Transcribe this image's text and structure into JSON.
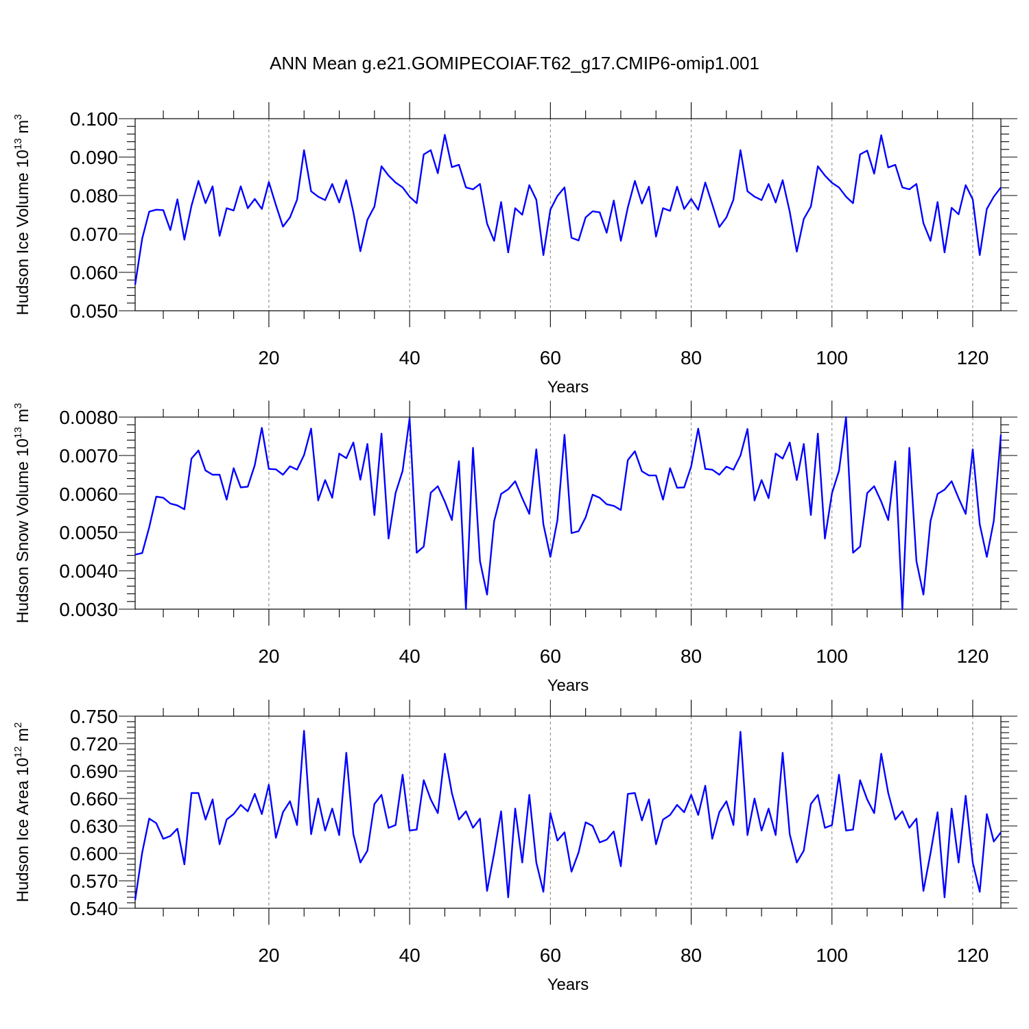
{
  "figure": {
    "title": "ANN Mean g.e21.GOMIPECOIAF.T62_g17.CMIP6-omip1.001"
  },
  "colors": {
    "series": "#0000ff",
    "axis": "#000000",
    "grid": "#7f7f7f"
  },
  "chart_data": [
    {
      "type": "line",
      "ylabel": "Hudson Ice Volume 10",
      "ylabel_exp": "13",
      "ylabel_unit": " m",
      "ylabel_unit_exp": "3",
      "xlabel": "Years",
      "xlim": [
        1,
        124
      ],
      "ylim": [
        0.05,
        0.1
      ],
      "yticks": [
        0.05,
        0.06,
        0.07,
        0.08,
        0.09,
        0.1
      ],
      "ytick_labels": [
        "0.050",
        "0.060",
        "0.070",
        "0.080",
        "0.090",
        "0.100"
      ],
      "xticks": [
        20,
        40,
        60,
        80,
        100,
        120
      ],
      "xtick_labels": [
        "20",
        "40",
        "60",
        "80",
        "100",
        "120"
      ],
      "grid": "vertical dashed at major x ticks",
      "x": [
        1,
        2,
        3,
        4,
        5,
        6,
        7,
        8,
        9,
        10,
        11,
        12,
        13,
        14,
        15,
        16,
        17,
        18,
        19,
        20,
        21,
        22,
        23,
        24,
        25,
        26,
        27,
        28,
        29,
        30,
        31,
        32,
        33,
        34,
        35,
        36,
        37,
        38,
        39,
        40,
        41,
        42,
        43,
        44,
        45,
        46,
        47,
        48,
        49,
        50,
        51,
        52,
        53,
        54,
        55,
        56,
        57,
        58,
        59,
        60,
        61,
        62,
        63,
        64,
        65,
        66,
        67,
        68,
        69,
        70,
        71,
        72,
        73,
        74,
        75,
        76,
        77,
        78,
        79,
        80,
        81,
        82,
        83,
        84,
        85,
        86,
        87,
        88,
        89,
        90,
        91,
        92,
        93,
        94,
        95,
        96,
        97,
        98,
        99,
        100,
        101,
        102,
        103,
        104,
        105,
        106,
        107,
        108,
        109,
        110,
        111,
        112,
        113,
        114,
        115,
        116,
        117,
        118,
        119,
        120,
        121,
        122,
        123,
        124
      ],
      "series": [
        {
          "values": [
            0.0568,
            0.0688,
            0.0758,
            0.0763,
            0.0762,
            0.071,
            0.079,
            0.0685,
            0.0773,
            0.0838,
            0.078,
            0.0824,
            0.0695,
            0.0767,
            0.0761,
            0.0824,
            0.0767,
            0.0791,
            0.0765,
            0.0835,
            0.0775,
            0.0719,
            0.0743,
            0.0789,
            0.0918,
            0.0811,
            0.0797,
            0.0788,
            0.083,
            0.0782,
            0.084,
            0.0757,
            0.0655,
            0.0737,
            0.0771,
            0.0876,
            0.0852,
            0.0834,
            0.0821,
            0.0797,
            0.078,
            0.0907,
            0.0918,
            0.0858,
            0.0958,
            0.0874,
            0.088,
            0.0821,
            0.0816,
            0.083,
            0.0727,
            0.0682,
            0.0783,
            0.0652,
            0.0767,
            0.075,
            0.0827,
            0.0789,
            0.0645,
            0.0763,
            0.0799,
            0.0821,
            0.069,
            0.0683,
            0.0743,
            0.0759,
            0.0756,
            0.0703,
            0.0787,
            0.0682,
            0.0769,
            0.0838,
            0.0779,
            0.0823,
            0.0693,
            0.0767,
            0.076,
            0.0823,
            0.0765,
            0.0791,
            0.0763,
            0.0834,
            0.0777,
            0.0718,
            0.0743,
            0.0789,
            0.0918,
            0.0811,
            0.0797,
            0.0788,
            0.083,
            0.0782,
            0.084,
            0.0758,
            0.0654,
            0.0739,
            0.0771,
            0.0876,
            0.0852,
            0.0833,
            0.0821,
            0.0797,
            0.078,
            0.0907,
            0.0917,
            0.0857,
            0.0957,
            0.0873,
            0.088,
            0.0821,
            0.0816,
            0.083,
            0.0728,
            0.0682,
            0.0783,
            0.0652,
            0.0768,
            0.0751,
            0.0827,
            0.079,
            0.0645,
            0.0765,
            0.0797,
            0.0821
          ]
        }
      ]
    },
    {
      "type": "line",
      "ylabel": "Hudson Snow Volume 10",
      "ylabel_exp": "13",
      "ylabel_unit": " m",
      "ylabel_unit_exp": "3",
      "xlabel": "Years",
      "xlim": [
        1,
        124
      ],
      "ylim": [
        0.003,
        0.008
      ],
      "yticks": [
        0.003,
        0.004,
        0.005,
        0.006,
        0.007,
        0.008
      ],
      "ytick_labels": [
        "0.0030",
        "0.0040",
        "0.0050",
        "0.0060",
        "0.0070",
        "0.0080"
      ],
      "xticks": [
        20,
        40,
        60,
        80,
        100,
        120
      ],
      "xtick_labels": [
        "20",
        "40",
        "60",
        "80",
        "100",
        "120"
      ],
      "grid": "vertical dashed at major x ticks",
      "x": [
        1,
        2,
        3,
        4,
        5,
        6,
        7,
        8,
        9,
        10,
        11,
        12,
        13,
        14,
        15,
        16,
        17,
        18,
        19,
        20,
        21,
        22,
        23,
        24,
        25,
        26,
        27,
        28,
        29,
        30,
        31,
        32,
        33,
        34,
        35,
        36,
        37,
        38,
        39,
        40,
        41,
        42,
        43,
        44,
        45,
        46,
        47,
        48,
        49,
        50,
        51,
        52,
        53,
        54,
        55,
        56,
        57,
        58,
        59,
        60,
        61,
        62,
        63,
        64,
        65,
        66,
        67,
        68,
        69,
        70,
        71,
        72,
        73,
        74,
        75,
        76,
        77,
        78,
        79,
        80,
        81,
        82,
        83,
        84,
        85,
        86,
        87,
        88,
        89,
        90,
        91,
        92,
        93,
        94,
        95,
        96,
        97,
        98,
        99,
        100,
        101,
        102,
        103,
        104,
        105,
        106,
        107,
        108,
        109,
        110,
        111,
        112,
        113,
        114,
        115,
        116,
        117,
        118,
        119,
        120,
        121,
        122,
        123,
        124
      ],
      "series": [
        {
          "values": [
            0.00442,
            0.00446,
            0.00513,
            0.00593,
            0.0059,
            0.00575,
            0.0057,
            0.0056,
            0.00692,
            0.00713,
            0.00661,
            0.0065,
            0.0065,
            0.00585,
            0.00667,
            0.00617,
            0.00619,
            0.00675,
            0.00772,
            0.00665,
            0.00664,
            0.0065,
            0.00672,
            0.00663,
            0.00701,
            0.0077,
            0.00583,
            0.00636,
            0.0059,
            0.00705,
            0.00693,
            0.00734,
            0.00637,
            0.0073,
            0.00545,
            0.00757,
            0.00484,
            0.00602,
            0.0066,
            0.00797,
            0.00447,
            0.00463,
            0.00603,
            0.0062,
            0.0058,
            0.00532,
            0.00685,
            0.003,
            0.0072,
            0.00425,
            0.00338,
            0.00529,
            0.006,
            0.00612,
            0.00633,
            0.00589,
            0.00548,
            0.00716,
            0.00521,
            0.00436,
            0.00532,
            0.00754,
            0.00498,
            0.00503,
            0.00539,
            0.00598,
            0.0059,
            0.00573,
            0.00569,
            0.00558,
            0.00688,
            0.00711,
            0.00659,
            0.00648,
            0.00648,
            0.00585,
            0.00667,
            0.00616,
            0.00617,
            0.00672,
            0.0077,
            0.00665,
            0.00663,
            0.0065,
            0.00671,
            0.00663,
            0.007,
            0.00769,
            0.00583,
            0.00636,
            0.00589,
            0.00705,
            0.00692,
            0.00734,
            0.00636,
            0.0073,
            0.00545,
            0.00757,
            0.00484,
            0.00602,
            0.0066,
            0.008,
            0.00447,
            0.00463,
            0.00602,
            0.0062,
            0.0058,
            0.00532,
            0.00685,
            0.003,
            0.0072,
            0.00425,
            0.00338,
            0.00529,
            0.006,
            0.00611,
            0.00633,
            0.00589,
            0.00548,
            0.00716,
            0.00521,
            0.00436,
            0.0053,
            0.00754
          ]
        }
      ]
    },
    {
      "type": "line",
      "ylabel": "Hudson Ice Area 10",
      "ylabel_exp": "12",
      "ylabel_unit": " m",
      "ylabel_unit_exp": "2",
      "xlabel": "Years",
      "xlim": [
        1,
        124
      ],
      "ylim": [
        0.54,
        0.75
      ],
      "yticks": [
        0.54,
        0.57,
        0.6,
        0.63,
        0.66,
        0.69,
        0.72,
        0.75
      ],
      "ytick_labels": [
        "0.540",
        "0.570",
        "0.600",
        "0.630",
        "0.660",
        "0.690",
        "0.720",
        "0.750"
      ],
      "xticks": [
        20,
        40,
        60,
        80,
        100,
        120
      ],
      "xtick_labels": [
        "20",
        "40",
        "60",
        "80",
        "100",
        "120"
      ],
      "grid": "vertical dashed at major x ticks",
      "x": [
        1,
        2,
        3,
        4,
        5,
        6,
        7,
        8,
        9,
        10,
        11,
        12,
        13,
        14,
        15,
        16,
        17,
        18,
        19,
        20,
        21,
        22,
        23,
        24,
        25,
        26,
        27,
        28,
        29,
        30,
        31,
        32,
        33,
        34,
        35,
        36,
        37,
        38,
        39,
        40,
        41,
        42,
        43,
        44,
        45,
        46,
        47,
        48,
        49,
        50,
        51,
        52,
        53,
        54,
        55,
        56,
        57,
        58,
        59,
        60,
        61,
        62,
        63,
        64,
        65,
        66,
        67,
        68,
        69,
        70,
        71,
        72,
        73,
        74,
        75,
        76,
        77,
        78,
        79,
        80,
        81,
        82,
        83,
        84,
        85,
        86,
        87,
        88,
        89,
        90,
        91,
        92,
        93,
        94,
        95,
        96,
        97,
        98,
        99,
        100,
        101,
        102,
        103,
        104,
        105,
        106,
        107,
        108,
        109,
        110,
        111,
        112,
        113,
        114,
        115,
        116,
        117,
        118,
        119,
        120,
        121,
        122,
        123,
        124
      ],
      "series": [
        {
          "values": [
            0.549,
            0.601,
            0.638,
            0.633,
            0.616,
            0.619,
            0.627,
            0.588,
            0.666,
            0.666,
            0.637,
            0.659,
            0.61,
            0.637,
            0.643,
            0.653,
            0.646,
            0.665,
            0.643,
            0.675,
            0.617,
            0.645,
            0.657,
            0.631,
            0.734,
            0.621,
            0.66,
            0.625,
            0.649,
            0.62,
            0.71,
            0.621,
            0.59,
            0.603,
            0.654,
            0.664,
            0.628,
            0.631,
            0.686,
            0.625,
            0.626,
            0.68,
            0.659,
            0.644,
            0.709,
            0.666,
            0.637,
            0.646,
            0.628,
            0.638,
            0.559,
            0.6,
            0.646,
            0.552,
            0.649,
            0.59,
            0.664,
            0.59,
            0.558,
            0.644,
            0.614,
            0.623,
            0.58,
            0.601,
            0.634,
            0.63,
            0.612,
            0.615,
            0.624,
            0.586,
            0.665,
            0.666,
            0.636,
            0.659,
            0.61,
            0.637,
            0.642,
            0.653,
            0.645,
            0.664,
            0.642,
            0.674,
            0.616,
            0.645,
            0.657,
            0.631,
            0.733,
            0.62,
            0.66,
            0.625,
            0.649,
            0.62,
            0.71,
            0.621,
            0.59,
            0.603,
            0.654,
            0.664,
            0.628,
            0.631,
            0.686,
            0.625,
            0.626,
            0.68,
            0.659,
            0.644,
            0.709,
            0.666,
            0.637,
            0.646,
            0.628,
            0.638,
            0.559,
            0.6,
            0.645,
            0.552,
            0.649,
            0.59,
            0.663,
            0.59,
            0.558,
            0.643,
            0.613,
            0.623
          ]
        }
      ]
    }
  ]
}
